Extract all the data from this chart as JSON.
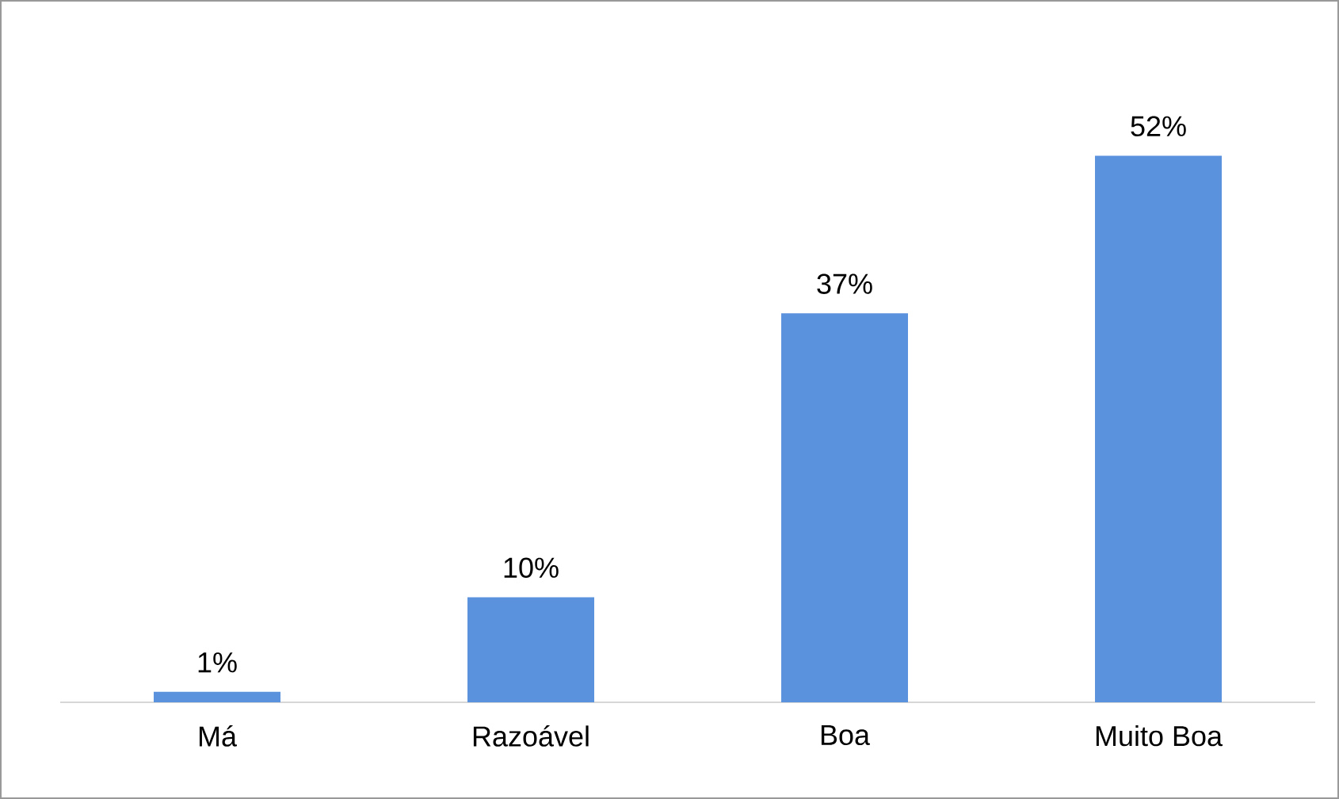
{
  "chart_data": {
    "type": "bar",
    "categories": [
      "Má",
      "Razoável",
      "Boa",
      "Muito Boa"
    ],
    "values": [
      1,
      10,
      37,
      52
    ],
    "value_labels": [
      "1%",
      "10%",
      "37%",
      "52%"
    ],
    "color": "#5b92de"
  }
}
